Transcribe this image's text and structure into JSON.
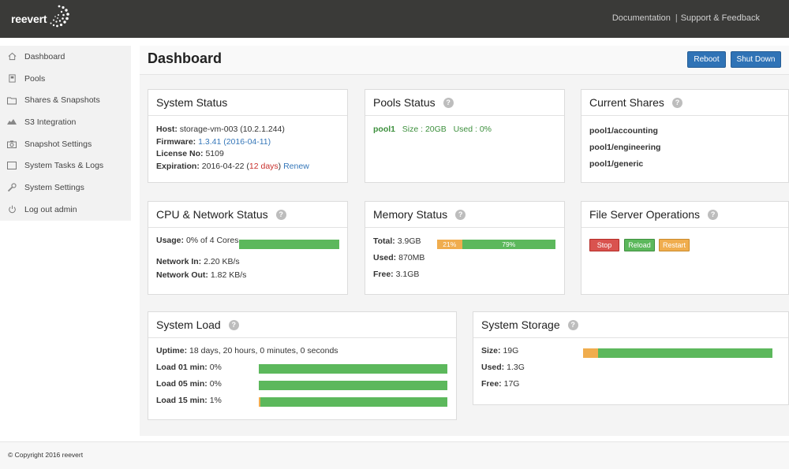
{
  "brand": {
    "name": "reevert"
  },
  "topnav": {
    "documentation": "Documentation",
    "separator": "|",
    "support": "Support & Feedback"
  },
  "sidebar": {
    "items": [
      {
        "label": "Dashboard",
        "icon": "home-icon"
      },
      {
        "label": "Pools",
        "icon": "pool-icon"
      },
      {
        "label": "Shares & Snapshots",
        "icon": "folder-icon"
      },
      {
        "label": "S3 Integration",
        "icon": "cloud-icon"
      },
      {
        "label": "Snapshot Settings",
        "icon": "camera-icon"
      },
      {
        "label": "System Tasks & Logs",
        "icon": "tasks-icon"
      },
      {
        "label": "System Settings",
        "icon": "wrench-icon"
      },
      {
        "label": "Log out admin",
        "icon": "power-icon"
      }
    ]
  },
  "header": {
    "title": "Dashboard",
    "reboot": "Reboot",
    "shutdown": "Shut Down"
  },
  "help_glyph": "?",
  "system_status": {
    "title": "System Status",
    "host_label": "Host:",
    "host": "storage-vm-003 (10.2.1.244)",
    "firmware_label": "Firmware:",
    "firmware": "1.3.41 (2016-04-11)",
    "license_label": "License No:",
    "license": "5109",
    "expiration_label": "Expiration:",
    "expiration_date": "2016-04-22 (",
    "expiration_days": "12 days",
    "expiration_close": ")",
    "renew": "Renew"
  },
  "pools_status": {
    "title": "Pools Status",
    "pool_name": "pool1",
    "size": "Size : 20GB",
    "used": "Used : 0%"
  },
  "current_shares": {
    "title": "Current Shares",
    "shares": [
      "pool1/accounting",
      "pool1/engineering",
      "pool1/generic"
    ]
  },
  "cpu_network": {
    "title": "CPU & Network Status",
    "usage_label": "Usage:",
    "usage": "0% of 4 Cores",
    "usage_fraction": 0.0,
    "net_in_label": "Network In:",
    "net_in": "2.20 KB/s",
    "net_out_label": "Network Out:",
    "net_out": "1.82 KB/s"
  },
  "memory": {
    "title": "Memory Status",
    "total_label": "Total:",
    "total": "3.9GB",
    "used_label": "Used:",
    "used": "870MB",
    "free_label": "Free:",
    "free": "3.1GB",
    "used_pct_label": "21%",
    "free_pct_label": "79%",
    "used_fraction": 0.21
  },
  "file_server": {
    "title": "File Server Operations",
    "stop": "Stop",
    "reload": "Reload",
    "restart": "Restart"
  },
  "system_load": {
    "title": "System Load",
    "uptime_label": "Uptime:",
    "uptime": "18 days, 20 hours, 0 minutes, 0 seconds",
    "load1_label": "Load 01 min:",
    "load1": "0%",
    "load1_fraction": 0.0,
    "load5_label": "Load 05 min:",
    "load5": "0%",
    "load5_fraction": 0.0,
    "load15_label": "Load 15 min:",
    "load15": "1%",
    "load15_fraction": 0.01
  },
  "system_storage": {
    "title": "System Storage",
    "size_label": "Size:",
    "size": "19G",
    "used_label": "Used:",
    "used": "1.3G",
    "free_label": "Free:",
    "free": "17G",
    "used_fraction": 0.08
  },
  "footer": {
    "copyright": "© Copyright 2016 reevert"
  },
  "colors": {
    "topbar": "#3a3a38",
    "primary": "#2f73b6",
    "success": "#5cb85c",
    "warning": "#f0ad4e",
    "danger": "#d9534f",
    "link": "#3577b9"
  }
}
